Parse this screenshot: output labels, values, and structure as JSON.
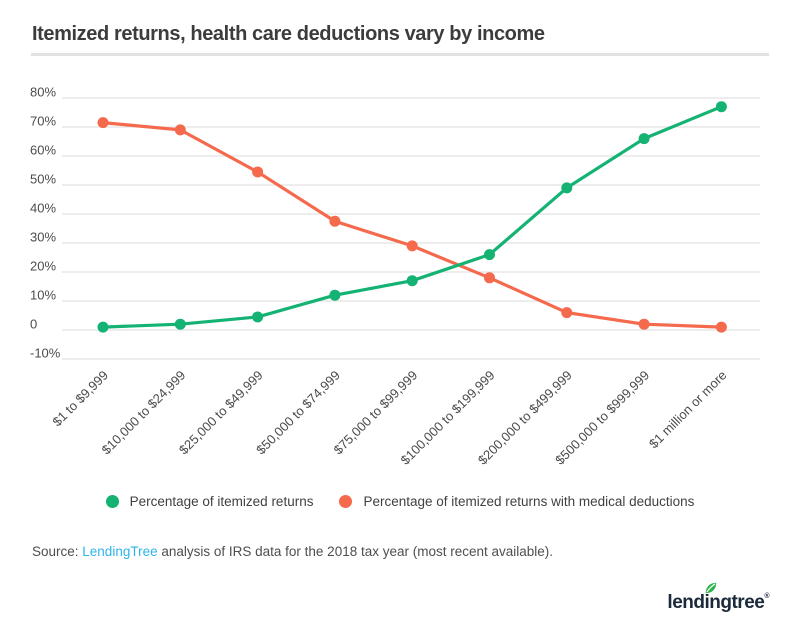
{
  "title": "Itemized returns, health care deductions vary by income",
  "chart_data": {
    "type": "line",
    "title": "Itemized returns, health care deductions vary by income",
    "categories": [
      "$1 to $9,999",
      "$10,000 to $24,999",
      "$25,000 to $49,999",
      "$50,000 to $74,999",
      "$75,000 to $99,999",
      "$100,000 to $199,999",
      "$200,000 to $499,999",
      "$500,000 to $999,999",
      "$1 million or more"
    ],
    "series": [
      {
        "name": "Percentage of itemized returns",
        "color": "#14b374",
        "values": [
          1,
          2,
          4.5,
          12,
          17,
          26,
          49,
          66,
          77
        ]
      },
      {
        "name": "Percentage of itemized returns with medical deductions",
        "color": "#f5694c",
        "values": [
          71.5,
          69,
          54.5,
          37.5,
          29,
          18,
          6,
          2,
          1
        ]
      }
    ],
    "y_axis": {
      "ticks": [
        "80%",
        "70%",
        "60%",
        "50%",
        "40%",
        "30%",
        "20%",
        "10%",
        "0",
        "-10%"
      ],
      "values": [
        80,
        70,
        60,
        50,
        40,
        30,
        20,
        10,
        0,
        -10
      ]
    },
    "xlabel": "",
    "ylabel": "",
    "ylim": [
      -10,
      80
    ],
    "grid": true,
    "gridline_color": "#e2e2e2",
    "legend_position": "bottom",
    "x_label_rotation": 45
  },
  "source": {
    "prefix": "Source: ",
    "link_text": "LendingTree",
    "suffix": " analysis of IRS data for the 2018 tax year (most recent available).",
    "link_color": "#2eb5e8"
  },
  "footer": {
    "logo_text": "lendingtree",
    "registered_mark": "®",
    "logo_color": "#1b2a3b",
    "leaf_color": "#2eb34c"
  }
}
